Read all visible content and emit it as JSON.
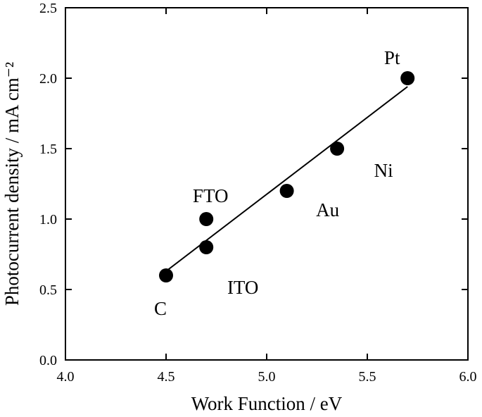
{
  "chart_data": {
    "type": "scatter",
    "title": "",
    "xlabel": "Work Function / eV",
    "ylabel": "Photocurrent density / mA cm⁻²",
    "xlim": [
      4.0,
      6.0
    ],
    "ylim": [
      0.0,
      2.5
    ],
    "xticks": [
      "4.0",
      "4.5",
      "5.0",
      "5.5",
      "6.0"
    ],
    "yticks": [
      "0.0",
      "0.5",
      "1.0",
      "1.5",
      "2.0",
      "2.5"
    ],
    "grid": false,
    "points": [
      {
        "label": "C",
        "x": 4.5,
        "y": 0.6
      },
      {
        "label": "FTO",
        "x": 4.7,
        "y": 1.0
      },
      {
        "label": "ITO",
        "x": 4.7,
        "y": 0.8
      },
      {
        "label": "Au",
        "x": 5.1,
        "y": 1.2
      },
      {
        "label": "Ni",
        "x": 5.35,
        "y": 1.5
      },
      {
        "label": "Pt",
        "x": 5.7,
        "y": 2.0
      }
    ],
    "fit_line": {
      "x": [
        4.5,
        5.7
      ],
      "y": [
        0.63,
        1.94
      ]
    },
    "colors": {
      "marker": "#000000",
      "line": "#000000"
    }
  }
}
